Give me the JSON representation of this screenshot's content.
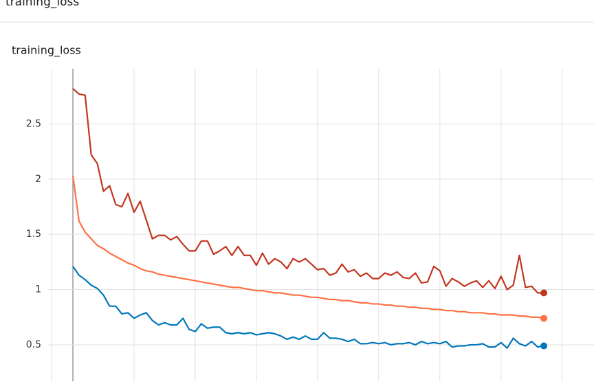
{
  "section_title": "training_loss",
  "chart_data": {
    "type": "line",
    "title": "training_loss",
    "x": [
      0,
      1,
      2,
      3,
      4,
      5,
      6,
      7,
      8,
      9,
      10,
      11,
      12,
      13,
      14,
      15,
      16,
      17,
      18,
      19,
      20,
      21,
      22,
      23,
      24,
      25,
      26,
      27,
      28,
      29,
      30,
      31,
      32,
      33,
      34,
      35,
      36,
      37,
      38,
      39,
      40,
      41,
      42,
      43,
      44,
      45,
      46,
      47,
      48,
      49,
      50,
      51,
      52,
      53,
      54,
      55,
      56,
      57,
      58,
      59,
      60,
      61,
      62,
      63,
      64,
      65,
      66,
      67,
      68,
      69,
      70,
      71,
      72,
      73,
      74,
      75,
      76,
      77
    ],
    "series": [
      {
        "color": "#c1361f",
        "values": [
          2.82,
          2.77,
          2.76,
          2.22,
          2.14,
          1.89,
          1.94,
          1.77,
          1.75,
          1.87,
          1.7,
          1.8,
          1.63,
          1.46,
          1.49,
          1.49,
          1.45,
          1.48,
          1.41,
          1.35,
          1.35,
          1.44,
          1.44,
          1.32,
          1.35,
          1.39,
          1.31,
          1.39,
          1.31,
          1.31,
          1.22,
          1.33,
          1.23,
          1.28,
          1.25,
          1.19,
          1.28,
          1.25,
          1.28,
          1.23,
          1.18,
          1.19,
          1.13,
          1.15,
          1.23,
          1.16,
          1.18,
          1.12,
          1.15,
          1.1,
          1.1,
          1.15,
          1.13,
          1.16,
          1.11,
          1.1,
          1.15,
          1.06,
          1.07,
          1.21,
          1.17,
          1.03,
          1.1,
          1.07,
          1.03,
          1.06,
          1.08,
          1.02,
          1.08,
          1.01,
          1.12,
          1.0,
          1.04,
          1.31,
          1.02,
          1.03,
          0.97,
          0.97
        ]
      },
      {
        "color": "#ff7043",
        "values": [
          2.03,
          1.62,
          1.52,
          1.46,
          1.4,
          1.37,
          1.33,
          1.3,
          1.27,
          1.24,
          1.22,
          1.19,
          1.17,
          1.16,
          1.14,
          1.13,
          1.12,
          1.11,
          1.1,
          1.09,
          1.08,
          1.07,
          1.06,
          1.05,
          1.04,
          1.03,
          1.02,
          1.02,
          1.01,
          1.0,
          0.99,
          0.99,
          0.98,
          0.97,
          0.97,
          0.96,
          0.95,
          0.95,
          0.94,
          0.93,
          0.93,
          0.92,
          0.91,
          0.91,
          0.9,
          0.9,
          0.89,
          0.88,
          0.88,
          0.87,
          0.87,
          0.86,
          0.86,
          0.85,
          0.85,
          0.84,
          0.84,
          0.83,
          0.83,
          0.82,
          0.82,
          0.81,
          0.81,
          0.8,
          0.8,
          0.79,
          0.79,
          0.79,
          0.78,
          0.78,
          0.77,
          0.77,
          0.77,
          0.76,
          0.76,
          0.75,
          0.75,
          0.74
        ]
      },
      {
        "color": "#0077bb",
        "values": [
          1.21,
          1.13,
          1.09,
          1.04,
          1.01,
          0.95,
          0.85,
          0.85,
          0.78,
          0.79,
          0.74,
          0.77,
          0.79,
          0.72,
          0.68,
          0.7,
          0.68,
          0.68,
          0.74,
          0.64,
          0.62,
          0.69,
          0.65,
          0.66,
          0.66,
          0.61,
          0.6,
          0.61,
          0.6,
          0.61,
          0.59,
          0.6,
          0.61,
          0.6,
          0.58,
          0.55,
          0.57,
          0.55,
          0.58,
          0.55,
          0.55,
          0.61,
          0.56,
          0.56,
          0.55,
          0.53,
          0.55,
          0.51,
          0.51,
          0.52,
          0.51,
          0.52,
          0.5,
          0.51,
          0.51,
          0.52,
          0.5,
          0.53,
          0.51,
          0.52,
          0.51,
          0.53,
          0.48,
          0.49,
          0.49,
          0.5,
          0.5,
          0.51,
          0.48,
          0.48,
          0.52,
          0.47,
          0.56,
          0.51,
          0.49,
          0.53,
          0.48,
          0.49
        ]
      }
    ],
    "xlim": [
      -4.5,
      85.2
    ],
    "xticks": [
      0,
      10,
      20,
      30,
      40,
      50,
      60,
      70,
      80
    ],
    "ylim": [
      0.17,
      3.0
    ],
    "yticks": [
      0.5,
      1,
      1.5,
      2,
      2.5
    ],
    "grid": true
  }
}
